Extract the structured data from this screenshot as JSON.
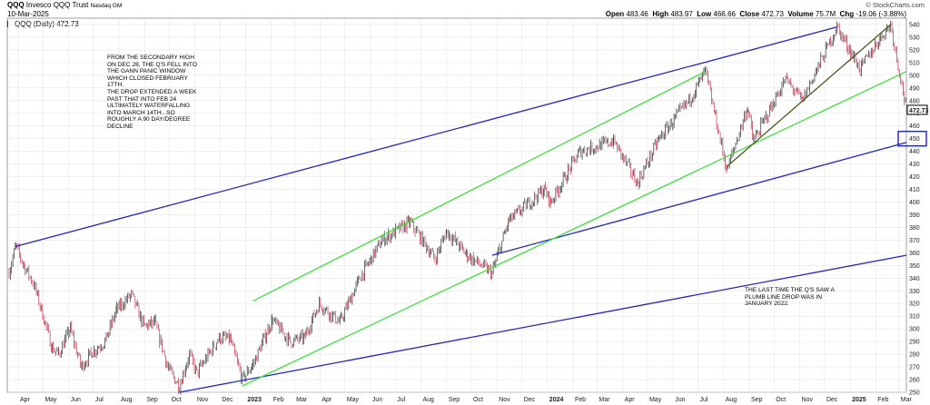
{
  "header": {
    "symbol": "QQQ",
    "name": "Invesco QQQ Trust",
    "exchange": "Nasdaq GM",
    "date": "10-Mar-2025",
    "source": "© StockCharts.com",
    "legend": "QQQ (Daily) 472.73",
    "ohlc": {
      "open_label": "Open",
      "open": "483.46",
      "high_label": "High",
      "high": "483.97",
      "low_label": "Low",
      "low": "466.66",
      "close_label": "Close",
      "close": "472.73",
      "volume_label": "Volume",
      "volume": "75.7M",
      "chg_label": "Chg",
      "chg": "-19.06 (-3.88%)"
    }
  },
  "annotations": {
    "note1": "FROM THE SECONDARY HIGH\nON DEC 28, THE Q's FELL INTO\nTHE GANN PANIC WINDOW\nWHICH CLOSED FEBRUARY\n17TH.\nTHE DROP EXTENDED A WEEK\nPAST THAT INTO FEB 24\nULTIMATELY WATERFALLING\nINTO MARCH 14TH...SO\nROUGHLY A 90 DAY/DEGREE\nDECLINE",
    "note2": "THE LAST TIME THE Q's SAW A\nPLUMB LINE DROP WAS IN\nJANUARY 2022."
  },
  "colors": {
    "up": "#2a2a2a",
    "down": "#c0304a",
    "channel_blue": "#1f25c8",
    "channel_green": "#3de03d",
    "trend_olive": "#4a5a1e",
    "grid": "#e6e6e6",
    "last_price_box": "#000000",
    "target_box": "#1f25c8"
  },
  "chart_data": {
    "type": "line",
    "title": "QQQ Invesco QQQ Trust Nasdaq GM",
    "xlabel": "",
    "ylabel": "",
    "ylim": [
      250,
      545
    ],
    "y_ticks": [
      250,
      260,
      270,
      280,
      290,
      300,
      310,
      320,
      330,
      340,
      350,
      360,
      370,
      380,
      390,
      400,
      410,
      420,
      430,
      440,
      450,
      460,
      470,
      480,
      490,
      500,
      510,
      520,
      530,
      540
    ],
    "x_tick_labels": [
      "Apr",
      "May",
      "Jun",
      "Jul",
      "Aug",
      "Sep",
      "Oct",
      "Nov",
      "Dec",
      "2023",
      "Feb",
      "Mar",
      "Apr",
      "May",
      "Jun",
      "Jul",
      "Aug",
      "Sep",
      "Oct",
      "Nov",
      "Dec",
      "2024",
      "Feb",
      "Mar",
      "Apr",
      "May",
      "Jun",
      "Jul",
      "Aug",
      "Sep",
      "Oct",
      "Nov",
      "Dec",
      "2025",
      "Feb",
      "Mar"
    ],
    "x_start": "2022-03-21",
    "x_end": "2025-03-10",
    "last_price": "472.73",
    "target_level": "450",
    "series": [
      {
        "style": "ohlc",
        "points": [
          [
            "2022-03-21",
            345
          ],
          [
            "2022-03-29",
            365
          ],
          [
            "2022-04-08",
            350
          ],
          [
            "2022-04-20",
            335
          ],
          [
            "2022-04-29",
            315
          ],
          [
            "2022-05-12",
            285
          ],
          [
            "2022-05-20",
            280
          ],
          [
            "2022-06-03",
            300
          ],
          [
            "2022-06-16",
            270
          ],
          [
            "2022-06-30",
            282
          ],
          [
            "2022-07-15",
            290
          ],
          [
            "2022-07-29",
            315
          ],
          [
            "2022-08-16",
            327
          ],
          [
            "2022-08-31",
            302
          ],
          [
            "2022-09-13",
            305
          ],
          [
            "2022-09-30",
            268
          ],
          [
            "2022-10-13",
            255
          ],
          [
            "2022-10-25",
            280
          ],
          [
            "2022-11-03",
            265
          ],
          [
            "2022-11-30",
            293
          ],
          [
            "2022-12-13",
            292
          ],
          [
            "2022-12-28",
            260
          ],
          [
            "2023-01-10",
            272
          ],
          [
            "2023-02-02",
            307
          ],
          [
            "2023-02-24",
            290
          ],
          [
            "2023-03-13",
            293
          ],
          [
            "2023-03-31",
            320
          ],
          [
            "2023-04-25",
            305
          ],
          [
            "2023-05-19",
            340
          ],
          [
            "2023-06-15",
            370
          ],
          [
            "2023-07-19",
            384
          ],
          [
            "2023-08-18",
            355
          ],
          [
            "2023-09-01",
            377
          ],
          [
            "2023-09-26",
            358
          ],
          [
            "2023-10-26",
            344
          ],
          [
            "2023-11-15",
            385
          ],
          [
            "2023-12-28",
            410
          ],
          [
            "2024-01-05",
            400
          ],
          [
            "2024-02-09",
            440
          ],
          [
            "2024-03-21",
            448
          ],
          [
            "2024-04-19",
            415
          ],
          [
            "2024-05-15",
            450
          ],
          [
            "2024-06-20",
            480
          ],
          [
            "2024-07-10",
            503
          ],
          [
            "2024-08-05",
            425
          ],
          [
            "2024-08-30",
            475
          ],
          [
            "2024-09-06",
            448
          ],
          [
            "2024-10-15",
            497
          ],
          [
            "2024-11-04",
            480
          ],
          [
            "2024-12-16",
            538
          ],
          [
            "2025-01-13",
            505
          ],
          [
            "2025-02-07",
            530
          ],
          [
            "2025-02-19",
            540
          ],
          [
            "2025-03-10",
            473
          ]
        ]
      }
    ],
    "trendlines": [
      {
        "color": "blue",
        "points": [
          [
            "2022-03-29",
            365
          ],
          [
            "2024-12-16",
            538
          ]
        ]
      },
      {
        "color": "blue",
        "points": [
          [
            "2022-10-13",
            250
          ],
          [
            "2025-03-10",
            358
          ]
        ]
      },
      {
        "color": "blue",
        "points": [
          [
            "2023-10-26",
            358
          ],
          [
            "2025-03-10",
            447
          ]
        ]
      },
      {
        "color": "green",
        "points": [
          [
            "2023-01-10",
            322
          ],
          [
            "2024-07-10",
            503
          ]
        ]
      },
      {
        "color": "green",
        "points": [
          [
            "2022-12-28",
            255
          ],
          [
            "2025-03-10",
            503
          ]
        ]
      },
      {
        "color": "olive",
        "points": [
          [
            "2024-08-05",
            428
          ],
          [
            "2025-02-19",
            540
          ]
        ]
      }
    ]
  }
}
